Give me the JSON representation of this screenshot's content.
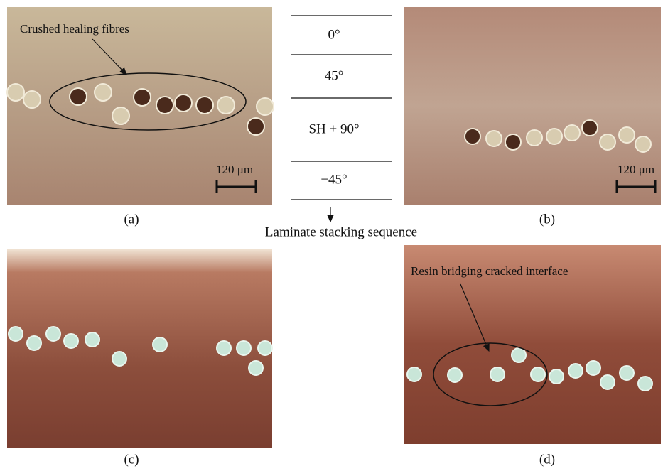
{
  "panels": [
    {
      "label": "(a)",
      "annotation": "Crushed healing fibres",
      "scale_bar": "120 μm"
    },
    {
      "label": "(b)",
      "scale_bar": "120 μm"
    },
    {
      "label": "(c)"
    },
    {
      "label": "(d)",
      "annotation": "Resin bridging cracked interface"
    }
  ],
  "stacking": {
    "layers": [
      "0°",
      "45°",
      "SH + 90°",
      "−45°"
    ],
    "caption": "Laminate stacking sequence"
  }
}
